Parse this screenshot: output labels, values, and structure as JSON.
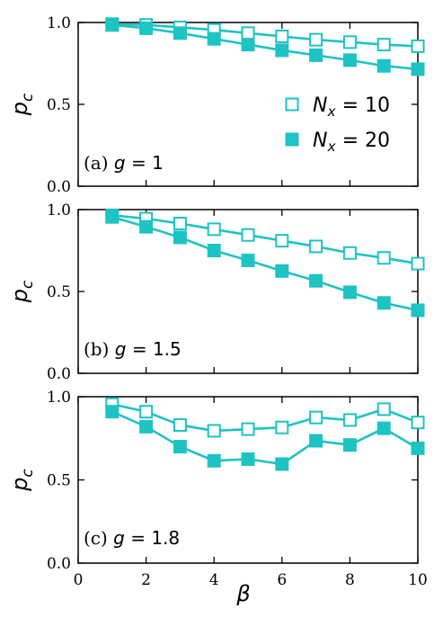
{
  "colors": {
    "series": "#1ec3c3",
    "axis": "#000000",
    "background": "#ffffff"
  },
  "chart_data": [
    {
      "type": "line",
      "panel_label": "(a) g = 1",
      "ylabel": "p_c",
      "xlabel": "",
      "xlim": [
        0,
        10
      ],
      "ylim": [
        0,
        1
      ],
      "xticks": [
        "0",
        "2",
        "4",
        "6",
        "8",
        "10"
      ],
      "yticks": [
        "0.0",
        "0.5",
        "1.0"
      ],
      "legend_placement": "right",
      "series": [
        {
          "name": "N_x = 10",
          "marker": "square-open",
          "x": [
            1,
            2,
            3,
            4,
            5,
            6,
            7,
            8,
            9,
            10
          ],
          "y": [
            0.99,
            0.985,
            0.97,
            0.955,
            0.935,
            0.915,
            0.895,
            0.88,
            0.865,
            0.855
          ]
        },
        {
          "name": "N_x = 20",
          "marker": "square-filled",
          "x": [
            1,
            2,
            3,
            4,
            5,
            6,
            7,
            8,
            9,
            10
          ],
          "y": [
            0.985,
            0.965,
            0.935,
            0.9,
            0.865,
            0.83,
            0.8,
            0.77,
            0.735,
            0.715
          ]
        }
      ]
    },
    {
      "type": "line",
      "panel_label": "(b) g = 1.5",
      "ylabel": "p_c",
      "xlabel": "",
      "xlim": [
        0,
        10
      ],
      "ylim": [
        0,
        1
      ],
      "xticks": [
        "0",
        "2",
        "4",
        "6",
        "8",
        "10"
      ],
      "yticks": [
        "0.0",
        "0.5",
        "1.0"
      ],
      "series": [
        {
          "name": "N_x = 10",
          "marker": "square-open",
          "x": [
            1,
            2,
            3,
            4,
            5,
            6,
            7,
            8,
            9,
            10
          ],
          "y": [
            0.965,
            0.945,
            0.915,
            0.88,
            0.845,
            0.81,
            0.775,
            0.735,
            0.705,
            0.67
          ]
        },
        {
          "name": "N_x = 20",
          "marker": "square-filled",
          "x": [
            1,
            2,
            3,
            4,
            5,
            6,
            7,
            8,
            9,
            10
          ],
          "y": [
            0.955,
            0.895,
            0.83,
            0.75,
            0.69,
            0.625,
            0.565,
            0.495,
            0.43,
            0.385
          ]
        }
      ]
    },
    {
      "type": "line",
      "panel_label": "(c) g = 1.8",
      "ylabel": "p_c",
      "xlabel": "β",
      "xlim": [
        0,
        10
      ],
      "ylim": [
        0,
        1
      ],
      "xticks": [
        "0",
        "2",
        "4",
        "6",
        "8",
        "10"
      ],
      "yticks": [
        "0.0",
        "0.5",
        "1.0"
      ],
      "series": [
        {
          "name": "N_x = 10",
          "marker": "square-open",
          "x": [
            1,
            2,
            3,
            4,
            5,
            6,
            7,
            8,
            9,
            10
          ],
          "y": [
            0.955,
            0.91,
            0.83,
            0.795,
            0.805,
            0.815,
            0.875,
            0.86,
            0.925,
            0.845
          ]
        },
        {
          "name": "N_x = 20",
          "marker": "square-filled",
          "x": [
            1,
            2,
            3,
            4,
            5,
            6,
            7,
            8,
            9,
            10
          ],
          "y": [
            0.91,
            0.82,
            0.7,
            0.615,
            0.625,
            0.595,
            0.735,
            0.71,
            0.81,
            0.69
          ]
        }
      ]
    }
  ]
}
